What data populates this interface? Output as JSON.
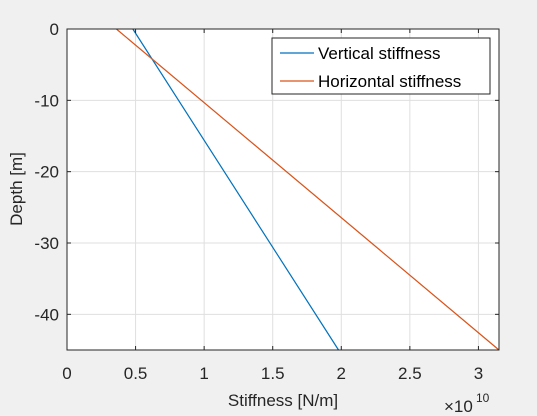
{
  "chart_data": {
    "type": "line",
    "xlabel": "Stiffness [N/m]",
    "ylabel": "Depth [m]",
    "x_exponent_label": "×10",
    "x_exponent_power": "10",
    "xlim": [
      0,
      3.15
    ],
    "ylim": [
      -45,
      0
    ],
    "xticks": [
      "0",
      "0.5",
      "1",
      "1.5",
      "2",
      "2.5",
      "3"
    ],
    "yticks": [
      "0",
      "-10",
      "-20",
      "-30",
      "-40"
    ],
    "xtick_values": [
      0,
      0.5,
      1,
      1.5,
      2,
      2.5,
      3
    ],
    "ytick_values": [
      0,
      -10,
      -20,
      -30,
      -40
    ],
    "grid": true,
    "legend_position": "top-right",
    "series": [
      {
        "name": "Vertical stiffness",
        "color": "#0072bd",
        "x": [
          0.48,
          1.98
        ],
        "y": [
          0,
          -45
        ]
      },
      {
        "name": "Horizontal stiffness",
        "color": "#d95319",
        "x": [
          0.36,
          3.15
        ],
        "y": [
          0,
          -45
        ]
      }
    ]
  }
}
